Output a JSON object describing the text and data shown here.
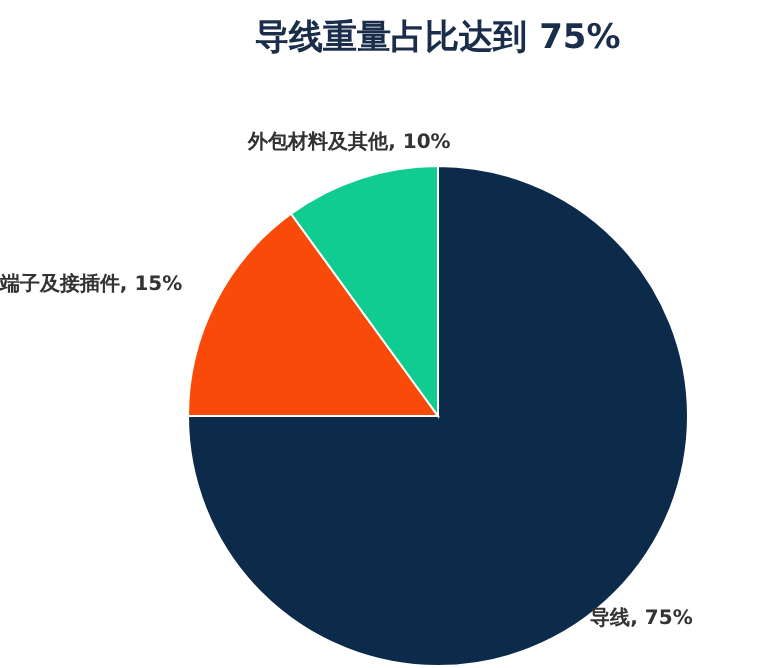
{
  "chart_data": {
    "type": "pie",
    "title": "导线重量占比达到 75%",
    "categories": [
      "导线",
      "端子及接插件",
      "外包材料及其他"
    ],
    "values": [
      75,
      15,
      10
    ],
    "value_labels": [
      "75%",
      "15%",
      "10%"
    ],
    "colors": [
      "#0c2b4b",
      "#fa4a0a",
      "#10cc90"
    ]
  }
}
